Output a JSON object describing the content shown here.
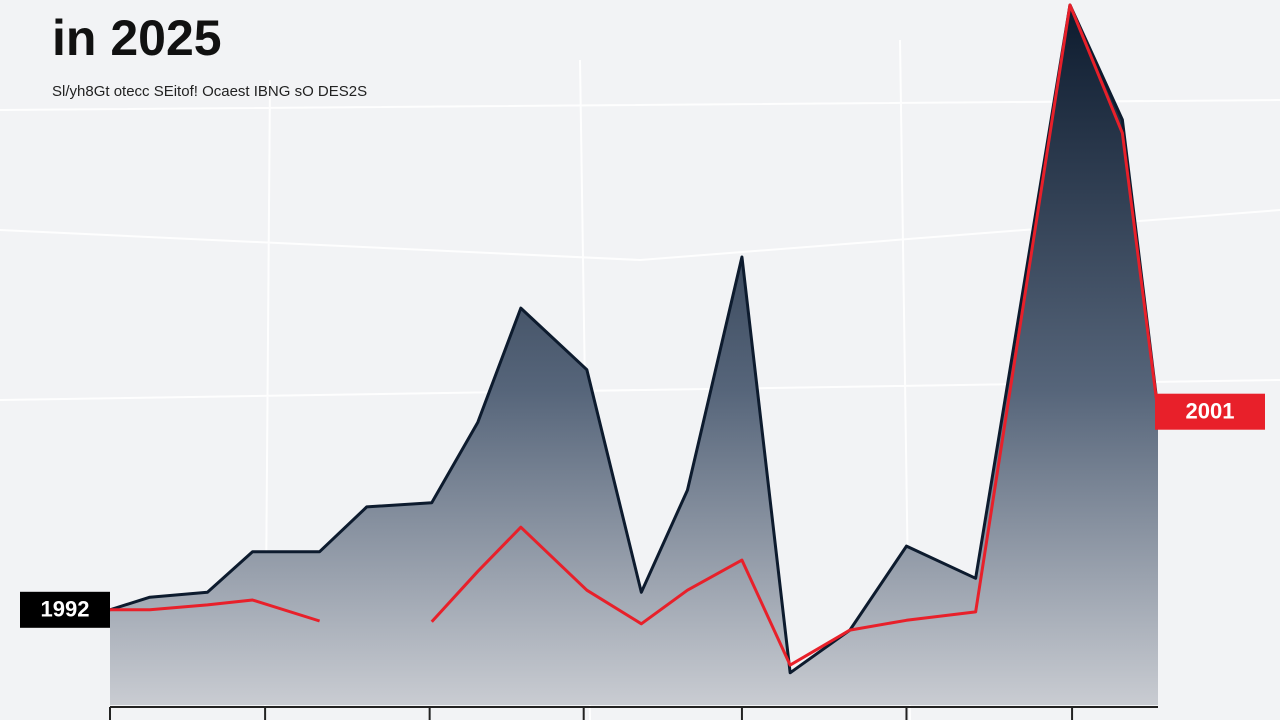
{
  "chart_data": {
    "type": "area",
    "title": "in 2025",
    "subtitle": "Sl/yh8Gt otecc SEitof! Ocaest IBNG sO DES2S",
    "x": [
      0,
      3.8,
      9.3,
      13.6,
      20,
      24.5,
      30.7,
      35.1,
      39.2,
      45.5,
      50.7,
      55.1,
      60.3,
      64.9,
      70.6,
      76,
      82.6,
      91.6,
      96.6,
      100
    ],
    "xlim": [
      0,
      100
    ],
    "xticks": [
      0,
      14.8,
      30.5,
      45.2,
      60.3,
      76,
      91.8
    ],
    "ylim": [
      0,
      100
    ],
    "series": [
      {
        "color": "#0d1b2e",
        "values": [
          13.6,
          15.4,
          16.1,
          21.9,
          21.9,
          28.3,
          28.9,
          40.4,
          56.7,
          47.9,
          16.1,
          30.7,
          64,
          4.6,
          10.7,
          22.7,
          18.1,
          100,
          83.6,
          42.1
        ]
      },
      {
        "color": "#e8202a",
        "values": [
          13.6,
          13.6,
          14.3,
          15,
          12,
          null,
          11.9,
          19.1,
          25.4,
          16.4,
          11.6,
          16.4,
          20.7,
          5.7,
          10.7,
          12.1,
          13.3,
          100,
          81.7,
          41.9
        ]
      }
    ],
    "annotations": [
      {
        "text": "1992",
        "x": 0,
        "y": 13.6,
        "color": "#000000"
      },
      {
        "text": "2001",
        "x": 100,
        "y": 41.9,
        "color": "#e8202a"
      }
    ]
  }
}
